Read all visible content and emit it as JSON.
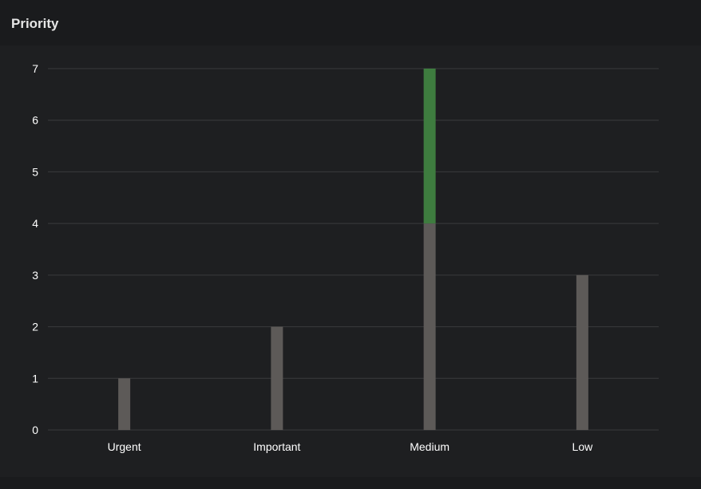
{
  "panel": {
    "title": "Priority"
  },
  "colors": {
    "background": "#1e1f21",
    "header_background": "#1a1b1d",
    "grid": "#3a3b3d",
    "bar_gray": "#5d5a58",
    "bar_green": "#3e7c3f"
  },
  "chart_data": {
    "type": "bar",
    "stacked": true,
    "categories": [
      "Urgent",
      "Important",
      "Medium",
      "Low"
    ],
    "series": [
      {
        "color": "#5d5a58",
        "values": [
          1,
          2,
          4,
          3
        ]
      },
      {
        "color": "#3e7c3f",
        "values": [
          0,
          0,
          3,
          0
        ]
      }
    ],
    "ylim": [
      0,
      7
    ],
    "yticks": [
      0,
      1,
      2,
      3,
      4,
      5,
      6,
      7
    ],
    "grid": true,
    "title": "",
    "xlabel": "",
    "ylabel": ""
  }
}
